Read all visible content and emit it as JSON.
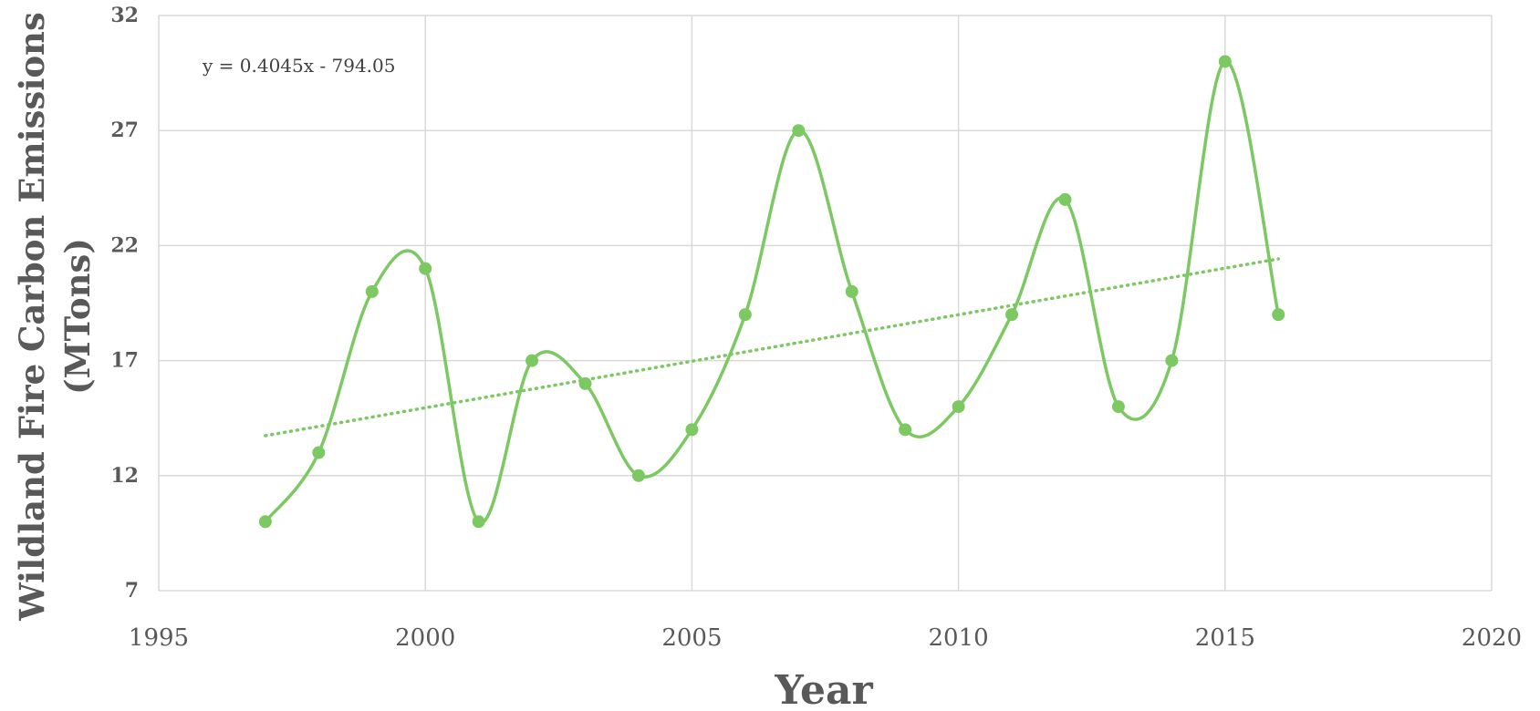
{
  "chart_data": {
    "type": "scatter",
    "title": "",
    "xlabel": "Year",
    "ylabel_lines": [
      "Wildland Fire Carbon Emissions",
      "(MTons)"
    ],
    "xlim": [
      1995,
      2020
    ],
    "ylim": [
      7,
      32
    ],
    "xticks": [
      1995,
      2000,
      2005,
      2010,
      2015,
      2020
    ],
    "yticks": [
      7,
      12,
      17,
      22,
      27,
      32
    ],
    "grid": true,
    "legend": "none",
    "series": [
      {
        "x": [
          1997,
          1998,
          1999,
          2000,
          2001,
          2002,
          2003,
          2004,
          2005,
          2006,
          2007,
          2008,
          2009,
          2010,
          2011,
          2012,
          2013,
          2014,
          2015,
          2016
        ],
        "y": [
          10,
          13,
          20,
          21,
          10,
          17,
          16,
          12,
          14,
          19,
          27,
          20,
          14,
          15,
          19,
          24,
          15,
          17,
          30,
          19
        ],
        "line": "smooth",
        "markers": true
      }
    ],
    "trendline": {
      "type": "linear",
      "equation": "y = 0.4045x - 794.05",
      "slope": 0.4045,
      "intercept": -794.05,
      "x_range": [
        1997,
        2016
      ],
      "style": "dotted"
    },
    "colors": {
      "series": "#7cc862",
      "grid": "#d9d9d9",
      "axis": "#d9d9d9",
      "tick_text": "#595959",
      "label_text": "#595959"
    }
  }
}
